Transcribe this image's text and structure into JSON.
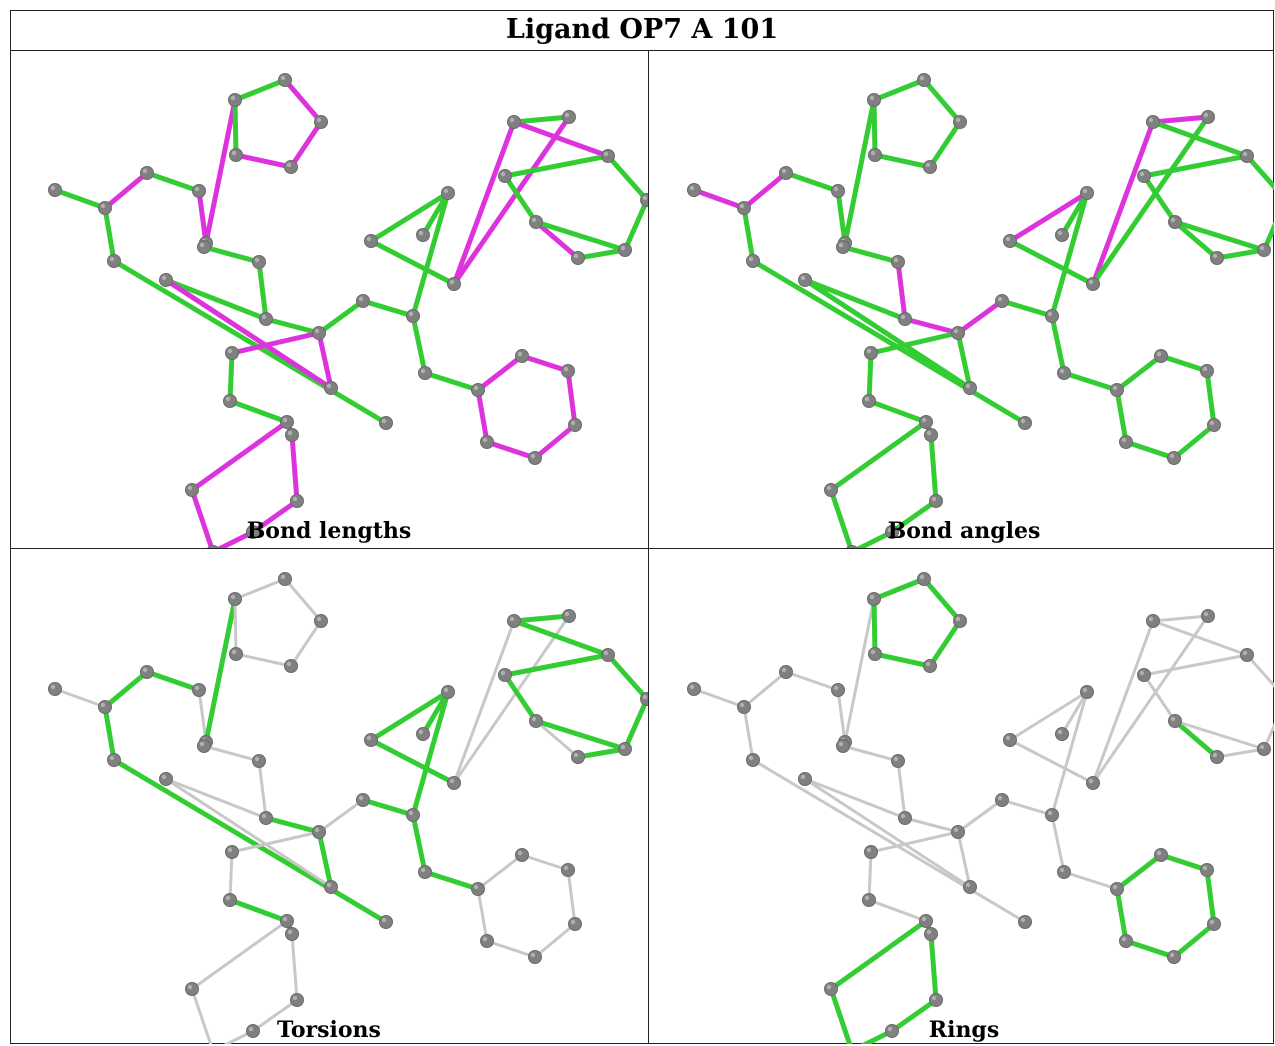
{
  "title": "Ligand OP7 A 101",
  "colors": {
    "good": "#33cc33",
    "outlier": "#dd33dd",
    "unanalysed": "#c8c8c8",
    "atom": "#808080",
    "atom_highlight": "#b0b0b0"
  },
  "panels": [
    {
      "caption": "Bond lengths",
      "pink": [
        "3-4",
        "4-5",
        "1-2",
        "6-7",
        "7-8",
        "8-9",
        "9-6",
        "15-17",
        "17-18",
        "18-11",
        "26-27",
        "26-28",
        "27-29",
        "32-33",
        "32-34",
        "33-35",
        "34-36",
        "36-37",
        "37-38",
        "38-35",
        "38-34",
        "39-40",
        "40-41",
        "41-42",
        "42-43",
        "43-44",
        "44-39",
        "45-46",
        "46-47",
        "47-48",
        "48-49",
        "49-50",
        "50-45"
      ]
    },
    {
      "caption": "Bond angles",
      "pink": [
        "0-1",
        "1-2",
        "13-14",
        "14-17",
        "17-20",
        "20-45",
        "23-24",
        "25-26",
        "26-27",
        "27-28",
        "28-29",
        "29-32",
        "34-38"
      ]
    },
    {
      "caption": "Torsions",
      "pink": [
        "4-12",
        "28-29"
      ],
      "gray": [
        "0-1",
        "1-3",
        "2-19",
        "3-4",
        "5-6",
        "6-7",
        "7-8",
        "8-9",
        "9-5",
        "12-13",
        "13-14",
        "17-20",
        "15-16",
        "15-17",
        "18-11",
        "14-11",
        "26-27",
        "26-28",
        "32-33",
        "32-34",
        "33-35",
        "34-36",
        "36-37",
        "37-38",
        "38-35",
        "38-34",
        "39-40",
        "40-41",
        "41-42",
        "42-43",
        "43-44",
        "45-46",
        "46-47",
        "47-48",
        "48-49",
        "49-50",
        "50-45"
      ]
    },
    {
      "caption": "Rings",
      "green": [
        "5-6",
        "6-7",
        "7-8",
        "8-9",
        "9-5",
        "32-33",
        "32-34",
        "33-35",
        "34-36",
        "36-37",
        "37-38",
        "38-35",
        "38-34",
        "39-40",
        "40-41",
        "41-42",
        "42-43",
        "43-44",
        "44-39",
        "45-46",
        "46-47",
        "47-48",
        "48-49",
        "49-50",
        "50-45"
      ]
    }
  ]
}
